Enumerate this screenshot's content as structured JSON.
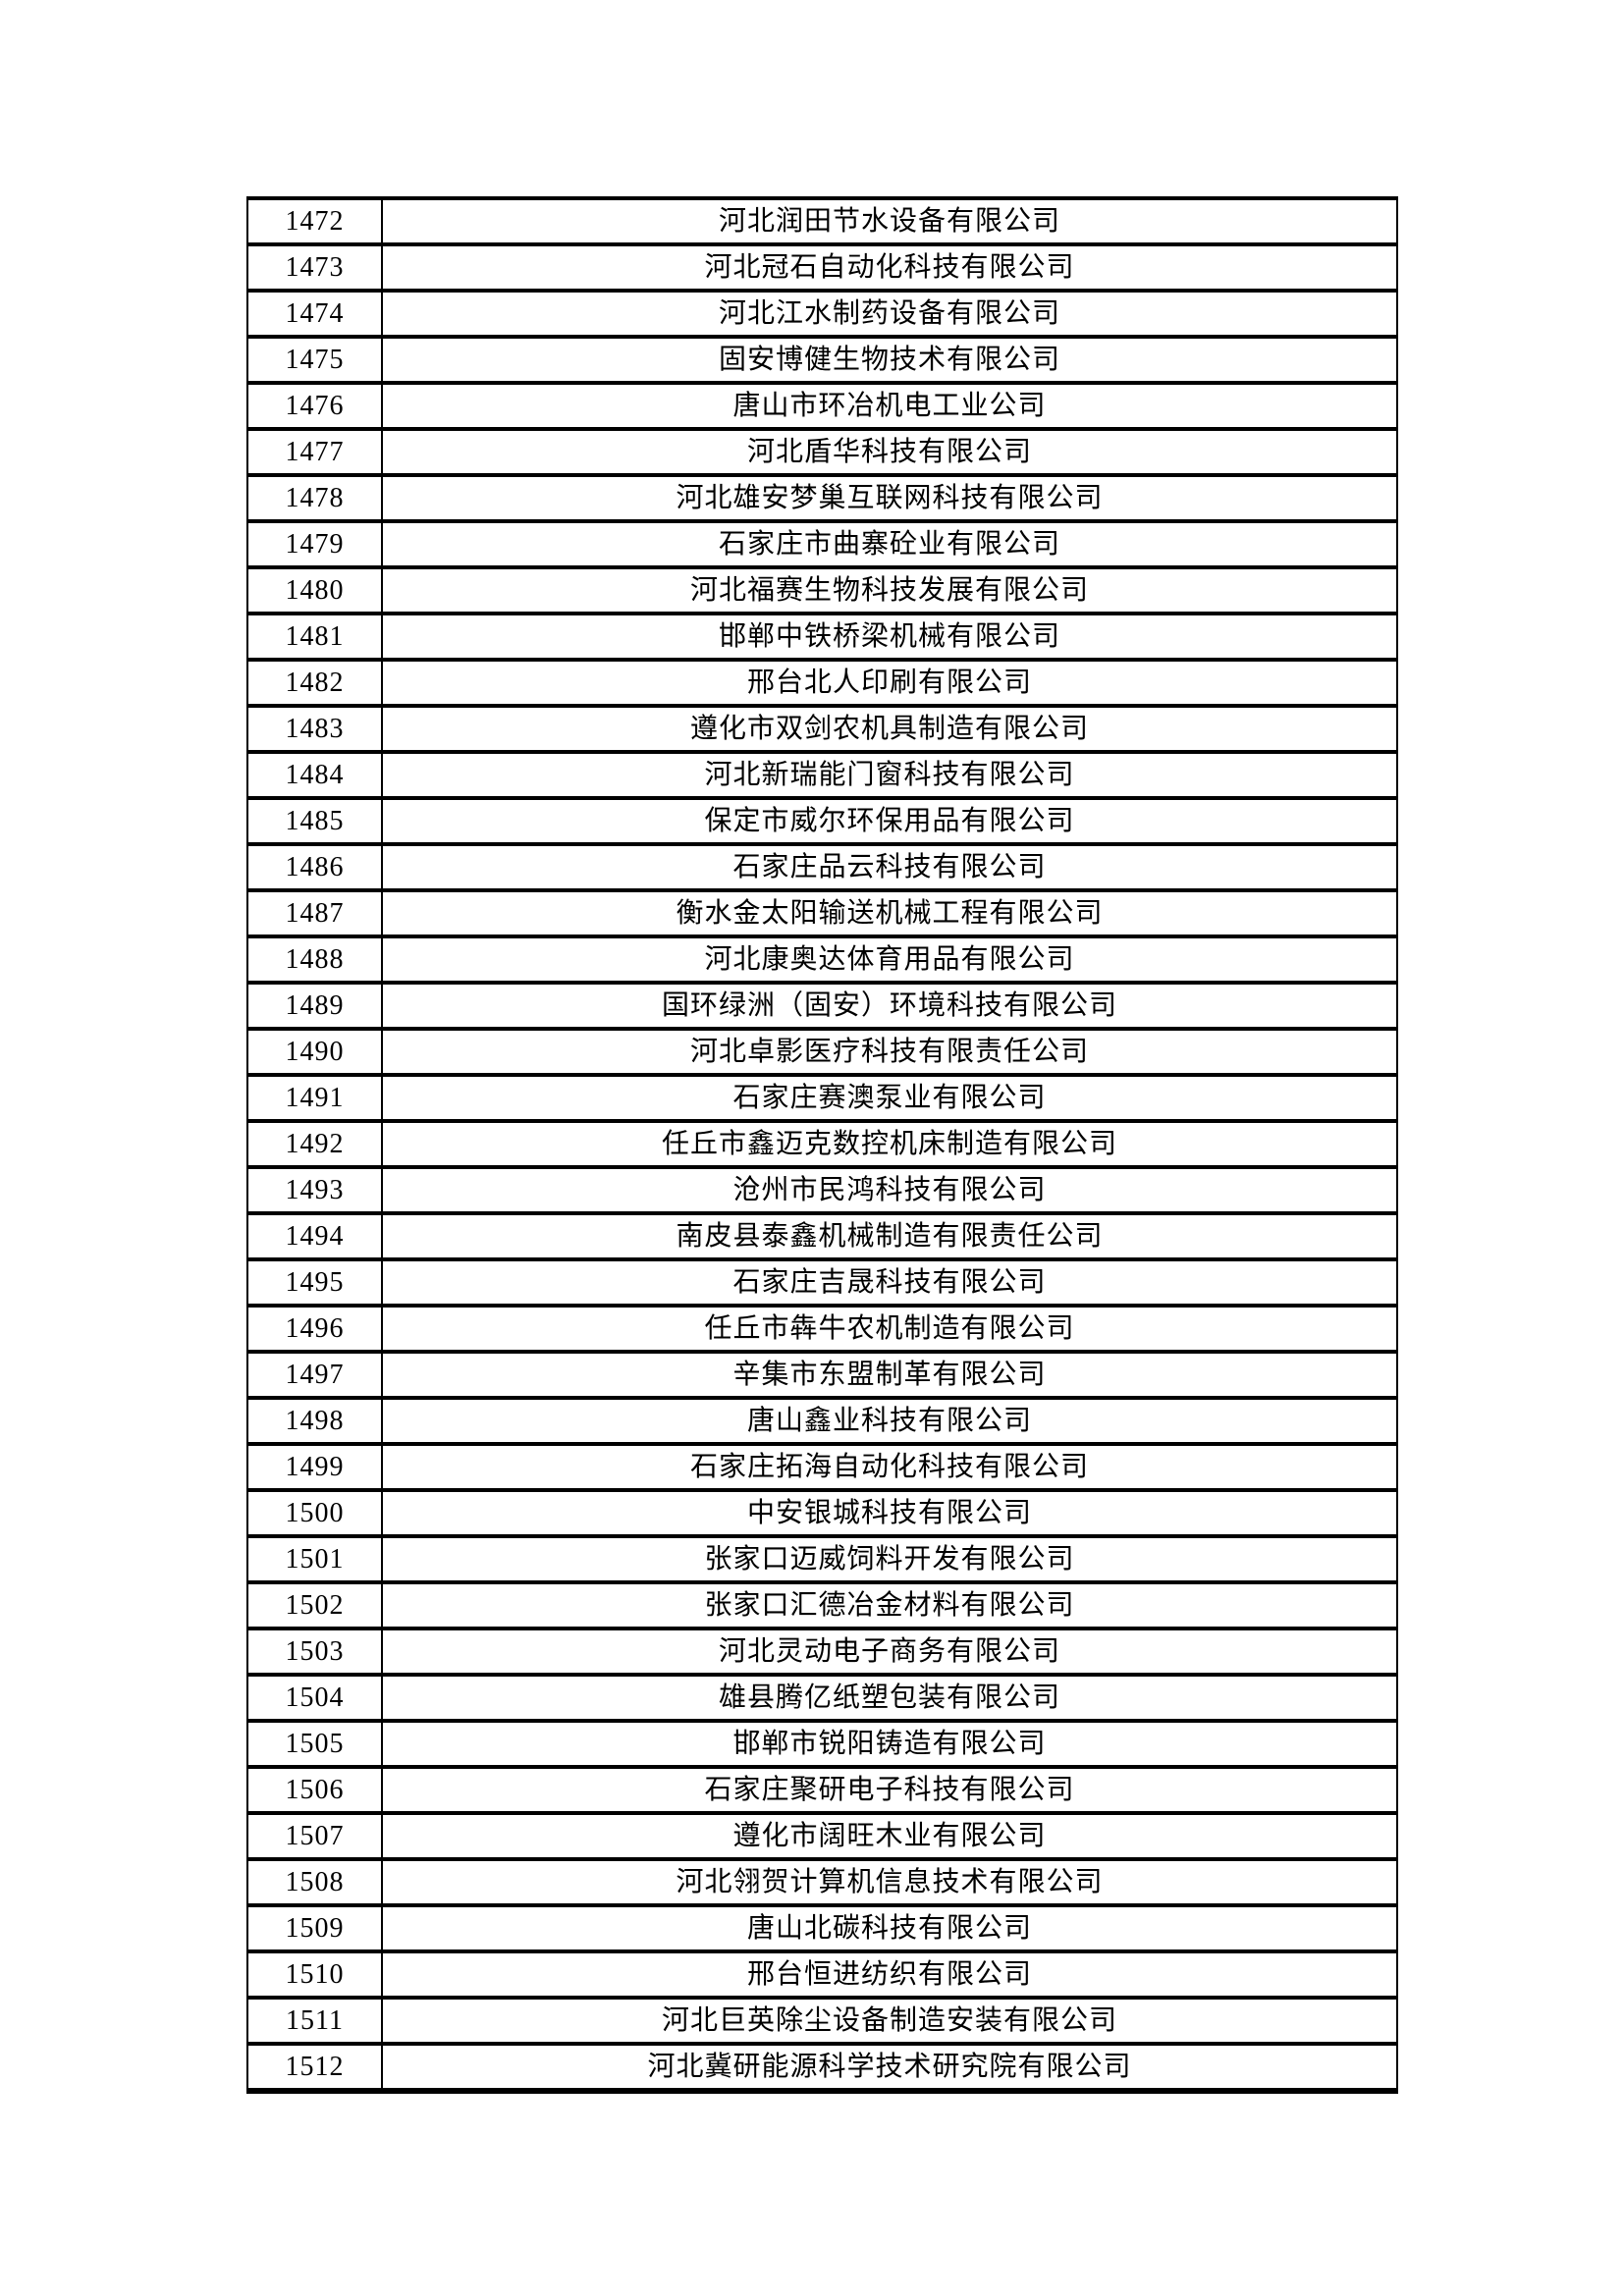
{
  "document": {
    "colors": {
      "background": "#ffffff",
      "border": "#000000",
      "text": "#000000"
    },
    "table": {
      "rows": [
        {
          "no": "1472",
          "company": "河北润田节水设备有限公司"
        },
        {
          "no": "1473",
          "company": "河北冠石自动化科技有限公司"
        },
        {
          "no": "1474",
          "company": "河北江水制药设备有限公司"
        },
        {
          "no": "1475",
          "company": "固安博健生物技术有限公司"
        },
        {
          "no": "1476",
          "company": "唐山市环冶机电工业公司"
        },
        {
          "no": "1477",
          "company": "河北盾华科技有限公司"
        },
        {
          "no": "1478",
          "company": "河北雄安梦巢互联网科技有限公司"
        },
        {
          "no": "1479",
          "company": "石家庄市曲寨砼业有限公司"
        },
        {
          "no": "1480",
          "company": "河北福赛生物科技发展有限公司"
        },
        {
          "no": "1481",
          "company": "邯郸中铁桥梁机械有限公司"
        },
        {
          "no": "1482",
          "company": "邢台北人印刷有限公司"
        },
        {
          "no": "1483",
          "company": "遵化市双剑农机具制造有限公司"
        },
        {
          "no": "1484",
          "company": "河北新瑞能门窗科技有限公司"
        },
        {
          "no": "1485",
          "company": "保定市威尔环保用品有限公司"
        },
        {
          "no": "1486",
          "company": "石家庄品云科技有限公司"
        },
        {
          "no": "1487",
          "company": "衡水金太阳输送机械工程有限公司"
        },
        {
          "no": "1488",
          "company": "河北康奥达体育用品有限公司"
        },
        {
          "no": "1489",
          "company": "国环绿洲（固安）环境科技有限公司"
        },
        {
          "no": "1490",
          "company": "河北卓影医疗科技有限责任公司"
        },
        {
          "no": "1491",
          "company": "石家庄赛澳泵业有限公司"
        },
        {
          "no": "1492",
          "company": "任丘市鑫迈克数控机床制造有限公司"
        },
        {
          "no": "1493",
          "company": "沧州市民鸿科技有限公司"
        },
        {
          "no": "1494",
          "company": "南皮县泰鑫机械制造有限责任公司"
        },
        {
          "no": "1495",
          "company": "石家庄吉晟科技有限公司"
        },
        {
          "no": "1496",
          "company": "任丘市犇牛农机制造有限公司"
        },
        {
          "no": "1497",
          "company": "辛集市东盟制革有限公司"
        },
        {
          "no": "1498",
          "company": "唐山鑫业科技有限公司"
        },
        {
          "no": "1499",
          "company": "石家庄拓海自动化科技有限公司"
        },
        {
          "no": "1500",
          "company": "中安银城科技有限公司"
        },
        {
          "no": "1501",
          "company": "张家口迈威饲料开发有限公司"
        },
        {
          "no": "1502",
          "company": "张家口汇德冶金材料有限公司"
        },
        {
          "no": "1503",
          "company": "河北灵动电子商务有限公司"
        },
        {
          "no": "1504",
          "company": "雄县腾亿纸塑包装有限公司"
        },
        {
          "no": "1505",
          "company": "邯郸市锐阳铸造有限公司"
        },
        {
          "no": "1506",
          "company": "石家庄聚研电子科技有限公司"
        },
        {
          "no": "1507",
          "company": "遵化市阔旺木业有限公司"
        },
        {
          "no": "1508",
          "company": "河北翎贺计算机信息技术有限公司"
        },
        {
          "no": "1509",
          "company": "唐山北碳科技有限公司"
        },
        {
          "no": "1510",
          "company": "邢台恒进纺织有限公司"
        },
        {
          "no": "1511",
          "company": "河北巨英除尘设备制造安装有限公司"
        },
        {
          "no": "1512",
          "company": "河北冀研能源科学技术研究院有限公司"
        }
      ]
    }
  }
}
